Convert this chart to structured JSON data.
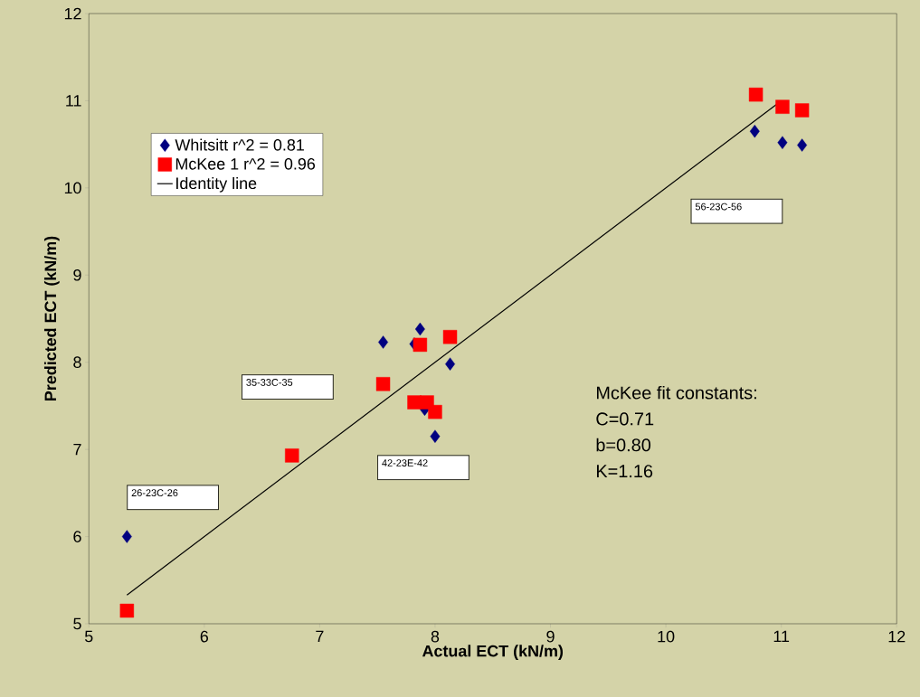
{
  "chart_data": {
    "type": "scatter",
    "xlabel": "Actual ECT (kN/m)",
    "ylabel": "Predicted ECT (kN/m)",
    "xlim": [
      5,
      12
    ],
    "ylim": [
      5,
      12
    ],
    "xticks": [
      5,
      6,
      7,
      8,
      9,
      10,
      11,
      12
    ],
    "yticks": [
      5,
      6,
      7,
      8,
      9,
      10,
      11,
      12
    ],
    "legend": "top left",
    "grid": false,
    "series": [
      {
        "name": "Whitsitt r^2 = 0.81",
        "color": "#000080",
        "marker": "diamond",
        "x": [
          5.33,
          7.55,
          7.82,
          7.87,
          8.13,
          7.91,
          8.0,
          10.77,
          11.01,
          11.18
        ],
        "values": [
          6.0,
          8.23,
          8.21,
          8.38,
          7.98,
          7.46,
          7.15,
          10.65,
          10.52,
          10.49
        ]
      },
      {
        "name": "McKee 1 r^2 = 0.96",
        "color": "#ff0000",
        "marker": "square",
        "x": [
          5.33,
          6.76,
          7.55,
          7.87,
          8.13,
          7.82,
          7.93,
          8.0,
          10.78,
          11.01,
          11.18
        ],
        "values": [
          5.15,
          6.93,
          7.75,
          8.2,
          8.29,
          7.54,
          7.54,
          7.43,
          11.07,
          10.93,
          10.89
        ]
      },
      {
        "name": "Identity line",
        "type": "line",
        "color": "#000000",
        "marker": "none",
        "x": [
          5.33,
          11.0
        ],
        "values": [
          5.33,
          11.0
        ]
      }
    ],
    "annotations": [
      "56-23C-56",
      "35-33C-35",
      "42-23E-42",
      "26-23C-26",
      "McKee fit constants:",
      "C=0.71",
      "b=0.80",
      "K=1.16"
    ]
  }
}
